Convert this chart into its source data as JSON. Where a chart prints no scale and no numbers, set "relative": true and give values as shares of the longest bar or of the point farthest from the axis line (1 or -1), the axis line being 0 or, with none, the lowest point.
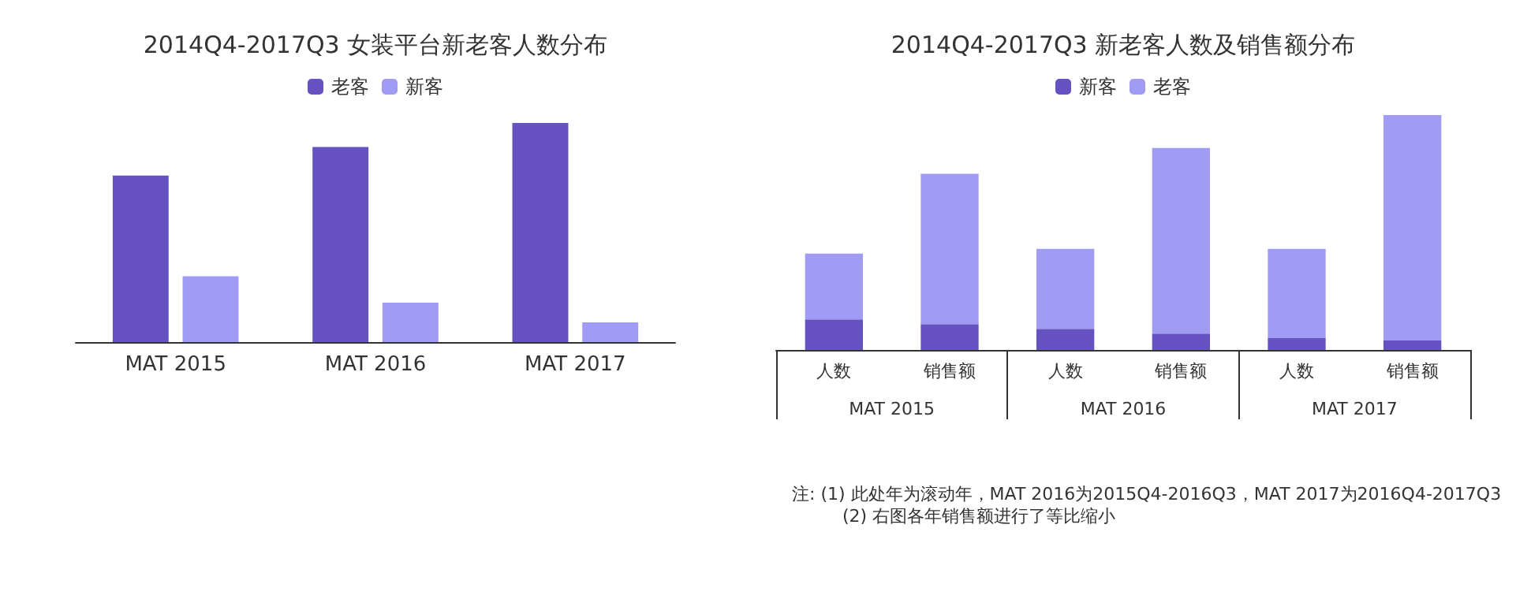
{
  "chart_data": [
    {
      "type": "bar",
      "title": "2014Q4-2017Q3 女装平台新老客人数分布",
      "categories": [
        "MAT 2015",
        "MAT 2016",
        "MAT 2017"
      ],
      "relative": true,
      "legend": "top",
      "grid": false,
      "series": [
        {
          "name": "老客",
          "color": "#6652c0",
          "values": [
            0.76,
            0.89,
            1
          ]
        },
        {
          "name": "新客",
          "color": "#a09cf3",
          "values": [
            0.3,
            0.18,
            0.09
          ]
        }
      ]
    },
    {
      "type": "bar",
      "title": "2014Q4-2017Q3 新老客人数及销售额分布",
      "categories": [
        "人数",
        "销售额",
        "人数",
        "销售额",
        "人数",
        "销售额"
      ],
      "relative": true,
      "stacked": true,
      "legend": "top",
      "grid": false,
      "series": [
        {
          "name": "新客",
          "color": "#6652c0",
          "values": [
            0.13,
            0.11,
            0.09,
            0.07,
            0.05,
            0.04
          ]
        },
        {
          "name": "老客",
          "color": "#a09cf3",
          "values": [
            0.28,
            0.64,
            0.34,
            0.79,
            0.38,
            0.96
          ]
        }
      ],
      "annotations": [
        "MAT 2015",
        "MAT 2016",
        "MAT 2017",
        "注: (1) 此处年为滚动年，MAT 2016为2015Q4-2016Q3，MAT 2017为2016Q4-2017Q3",
        "(2) 右图各年销售额进行了等比缩小"
      ]
    }
  ]
}
